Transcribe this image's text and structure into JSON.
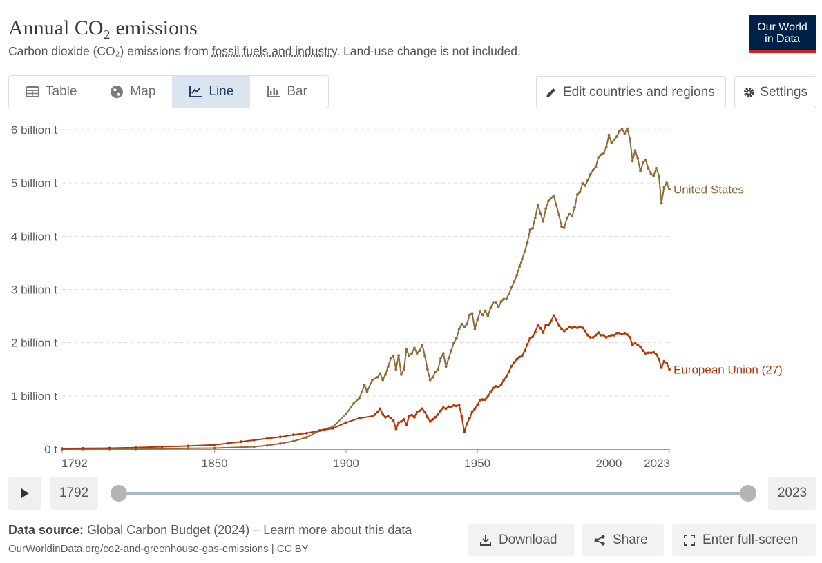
{
  "header": {
    "title": "Annual CO₂ emissions",
    "subtitle_pre": "Carbon dioxide (CO₂) emissions from ",
    "subtitle_link": "fossil fuels and industry",
    "subtitle_post": ". Land-use change is not included.",
    "logo_line1": "Our World",
    "logo_line2": "in Data"
  },
  "tabs": [
    {
      "label": "Table",
      "icon": "table-icon",
      "active": false
    },
    {
      "label": "Map",
      "icon": "globe-icon",
      "active": false
    },
    {
      "label": "Line",
      "icon": "line-chart-icon",
      "active": true
    },
    {
      "label": "Bar",
      "icon": "bar-chart-icon",
      "active": false
    }
  ],
  "toolbar": {
    "edit_label": "Edit countries and regions",
    "settings_label": "Settings"
  },
  "timeline": {
    "start_year": "1792",
    "end_year": "2023",
    "play_icon": "play-icon"
  },
  "footer": {
    "source_label": "Data source:",
    "source_text": " Global Carbon Budget (2024) – ",
    "learn_more": "Learn more about this data",
    "credit": "OurWorldinData.org/co2-and-greenhouse-gas-emissions | CC BY",
    "download_label": "Download",
    "share_label": "Share",
    "fullscreen_label": "Enter full-screen"
  },
  "colors": {
    "us": "#8d6b3a",
    "eu": "#b13507",
    "grid": "#dddddd",
    "axis_text": "#5b5b5b"
  },
  "chart_data": {
    "type": "line",
    "title": "Annual CO₂ emissions",
    "xlim": [
      1792,
      2023
    ],
    "ylim": [
      0,
      6000000000
    ],
    "x_ticks": [
      1792,
      1850,
      1900,
      1950,
      2000,
      2023
    ],
    "y_ticks": [
      {
        "value": 0,
        "label": "0 t"
      },
      {
        "value": 1000000000,
        "label": "1 billion t"
      },
      {
        "value": 2000000000,
        "label": "2 billion t"
      },
      {
        "value": 3000000000,
        "label": "3 billion t"
      },
      {
        "value": 4000000000,
        "label": "4 billion t"
      },
      {
        "value": 5000000000,
        "label": "5 billion t"
      },
      {
        "value": 6000000000,
        "label": "6 billion t"
      }
    ],
    "grid": true,
    "legend": "end-of-line labels",
    "series": [
      {
        "name": "United States",
        "color": "#8d6b3a",
        "points": [
          [
            1792,
            0
          ],
          [
            1800,
            1000000
          ],
          [
            1810,
            2000000
          ],
          [
            1820,
            4000000
          ],
          [
            1830,
            8000000
          ],
          [
            1840,
            16000000
          ],
          [
            1850,
            20000000
          ],
          [
            1860,
            35000000
          ],
          [
            1865,
            45000000
          ],
          [
            1870,
            70000000
          ],
          [
            1875,
            105000000
          ],
          [
            1880,
            150000000
          ],
          [
            1885,
            220000000
          ],
          [
            1890,
            350000000
          ],
          [
            1895,
            420000000
          ],
          [
            1900,
            660000000
          ],
          [
            1903,
            870000000
          ],
          [
            1905,
            950000000
          ],
          [
            1907,
            1200000000
          ],
          [
            1908,
            1080000000
          ],
          [
            1910,
            1300000000
          ],
          [
            1912,
            1350000000
          ],
          [
            1913,
            1420000000
          ],
          [
            1914,
            1300000000
          ],
          [
            1915,
            1400000000
          ],
          [
            1916,
            1550000000
          ],
          [
            1917,
            1700000000
          ],
          [
            1918,
            1750000000
          ],
          [
            1919,
            1500000000
          ],
          [
            1920,
            1760000000
          ],
          [
            1921,
            1400000000
          ],
          [
            1922,
            1500000000
          ],
          [
            1923,
            1880000000
          ],
          [
            1924,
            1750000000
          ],
          [
            1925,
            1800000000
          ],
          [
            1926,
            1900000000
          ],
          [
            1927,
            1800000000
          ],
          [
            1928,
            1850000000
          ],
          [
            1929,
            1960000000
          ],
          [
            1930,
            1750000000
          ],
          [
            1931,
            1500000000
          ],
          [
            1932,
            1300000000
          ],
          [
            1933,
            1350000000
          ],
          [
            1934,
            1450000000
          ],
          [
            1935,
            1500000000
          ],
          [
            1936,
            1700000000
          ],
          [
            1937,
            1800000000
          ],
          [
            1938,
            1550000000
          ],
          [
            1939,
            1700000000
          ],
          [
            1940,
            1850000000
          ],
          [
            1941,
            2000000000
          ],
          [
            1942,
            2080000000
          ],
          [
            1943,
            2250000000
          ],
          [
            1944,
            2350000000
          ],
          [
            1945,
            2300000000
          ],
          [
            1946,
            2350000000
          ],
          [
            1947,
            2520000000
          ],
          [
            1948,
            2550000000
          ],
          [
            1949,
            2250000000
          ],
          [
            1950,
            2430000000
          ],
          [
            1951,
            2580000000
          ],
          [
            1952,
            2520000000
          ],
          [
            1953,
            2600000000
          ],
          [
            1954,
            2500000000
          ],
          [
            1955,
            2650000000
          ],
          [
            1956,
            2760000000
          ],
          [
            1957,
            2760000000
          ],
          [
            1958,
            2670000000
          ],
          [
            1959,
            2770000000
          ],
          [
            1960,
            2820000000
          ],
          [
            1961,
            2820000000
          ],
          [
            1962,
            2920000000
          ],
          [
            1963,
            3040000000
          ],
          [
            1964,
            3150000000
          ],
          [
            1965,
            3270000000
          ],
          [
            1966,
            3430000000
          ],
          [
            1967,
            3570000000
          ],
          [
            1968,
            3720000000
          ],
          [
            1969,
            3880000000
          ],
          [
            1970,
            4120000000
          ],
          [
            1971,
            4150000000
          ],
          [
            1972,
            4350000000
          ],
          [
            1973,
            4580000000
          ],
          [
            1974,
            4430000000
          ],
          [
            1975,
            4280000000
          ],
          [
            1976,
            4520000000
          ],
          [
            1977,
            4660000000
          ],
          [
            1978,
            4720000000
          ],
          [
            1979,
            4760000000
          ],
          [
            1980,
            4580000000
          ],
          [
            1981,
            4400000000
          ],
          [
            1982,
            4180000000
          ],
          [
            1983,
            4160000000
          ],
          [
            1984,
            4330000000
          ],
          [
            1985,
            4420000000
          ],
          [
            1986,
            4380000000
          ],
          [
            1987,
            4540000000
          ],
          [
            1988,
            4780000000
          ],
          [
            1989,
            4830000000
          ],
          [
            1990,
            4990000000
          ],
          [
            1991,
            4950000000
          ],
          [
            1992,
            5050000000
          ],
          [
            1993,
            5160000000
          ],
          [
            1994,
            5240000000
          ],
          [
            1995,
            5300000000
          ],
          [
            1996,
            5480000000
          ],
          [
            1997,
            5530000000
          ],
          [
            1998,
            5560000000
          ],
          [
            1999,
            5670000000
          ],
          [
            2000,
            5900000000
          ],
          [
            2001,
            5760000000
          ],
          [
            2002,
            5810000000
          ],
          [
            2003,
            5870000000
          ],
          [
            2004,
            5970000000
          ],
          [
            2005,
            6010000000
          ],
          [
            2006,
            5930000000
          ],
          [
            2007,
            6020000000
          ],
          [
            2008,
            5830000000
          ],
          [
            2009,
            5410000000
          ],
          [
            2010,
            5610000000
          ],
          [
            2011,
            5460000000
          ],
          [
            2012,
            5220000000
          ],
          [
            2013,
            5380000000
          ],
          [
            2014,
            5430000000
          ],
          [
            2015,
            5270000000
          ],
          [
            2016,
            5170000000
          ],
          [
            2017,
            5130000000
          ],
          [
            2018,
            5280000000
          ],
          [
            2019,
            5140000000
          ],
          [
            2020,
            4620000000
          ],
          [
            2021,
            4920000000
          ],
          [
            2022,
            5000000000
          ],
          [
            2023,
            4880000000
          ]
        ]
      },
      {
        "name": "European Union (27)",
        "color": "#b13507",
        "points": [
          [
            1792,
            10000000
          ],
          [
            1800,
            15000000
          ],
          [
            1810,
            20000000
          ],
          [
            1820,
            30000000
          ],
          [
            1830,
            45000000
          ],
          [
            1840,
            60000000
          ],
          [
            1850,
            80000000
          ],
          [
            1855,
            110000000
          ],
          [
            1860,
            140000000
          ],
          [
            1865,
            170000000
          ],
          [
            1870,
            200000000
          ],
          [
            1875,
            230000000
          ],
          [
            1880,
            270000000
          ],
          [
            1885,
            300000000
          ],
          [
            1890,
            350000000
          ],
          [
            1895,
            390000000
          ],
          [
            1900,
            500000000
          ],
          [
            1905,
            580000000
          ],
          [
            1910,
            620000000
          ],
          [
            1911,
            650000000
          ],
          [
            1912,
            700000000
          ],
          [
            1913,
            760000000
          ],
          [
            1914,
            650000000
          ],
          [
            1915,
            600000000
          ],
          [
            1916,
            620000000
          ],
          [
            1917,
            580000000
          ],
          [
            1918,
            540000000
          ],
          [
            1919,
            380000000
          ],
          [
            1920,
            500000000
          ],
          [
            1921,
            520000000
          ],
          [
            1922,
            560000000
          ],
          [
            1923,
            450000000
          ],
          [
            1924,
            620000000
          ],
          [
            1925,
            640000000
          ],
          [
            1926,
            600000000
          ],
          [
            1927,
            700000000
          ],
          [
            1928,
            720000000
          ],
          [
            1929,
            760000000
          ],
          [
            1930,
            700000000
          ],
          [
            1931,
            600000000
          ],
          [
            1932,
            520000000
          ],
          [
            1933,
            560000000
          ],
          [
            1934,
            600000000
          ],
          [
            1935,
            650000000
          ],
          [
            1936,
            720000000
          ],
          [
            1937,
            780000000
          ],
          [
            1938,
            760000000
          ],
          [
            1939,
            800000000
          ],
          [
            1940,
            790000000
          ],
          [
            1941,
            820000000
          ],
          [
            1942,
            810000000
          ],
          [
            1943,
            830000000
          ],
          [
            1944,
            620000000
          ],
          [
            1945,
            320000000
          ],
          [
            1946,
            480000000
          ],
          [
            1947,
            580000000
          ],
          [
            1948,
            700000000
          ],
          [
            1949,
            760000000
          ],
          [
            1950,
            830000000
          ],
          [
            1951,
            920000000
          ],
          [
            1952,
            930000000
          ],
          [
            1953,
            930000000
          ],
          [
            1954,
            990000000
          ],
          [
            1955,
            1080000000
          ],
          [
            1956,
            1150000000
          ],
          [
            1957,
            1180000000
          ],
          [
            1958,
            1170000000
          ],
          [
            1959,
            1210000000
          ],
          [
            1960,
            1300000000
          ],
          [
            1961,
            1360000000
          ],
          [
            1962,
            1460000000
          ],
          [
            1963,
            1560000000
          ],
          [
            1964,
            1630000000
          ],
          [
            1965,
            1690000000
          ],
          [
            1966,
            1730000000
          ],
          [
            1967,
            1760000000
          ],
          [
            1968,
            1850000000
          ],
          [
            1969,
            1970000000
          ],
          [
            1970,
            2080000000
          ],
          [
            1971,
            2110000000
          ],
          [
            1972,
            2200000000
          ],
          [
            1973,
            2330000000
          ],
          [
            1974,
            2270000000
          ],
          [
            1975,
            2190000000
          ],
          [
            1976,
            2330000000
          ],
          [
            1977,
            2330000000
          ],
          [
            1978,
            2410000000
          ],
          [
            1979,
            2510000000
          ],
          [
            1980,
            2430000000
          ],
          [
            1981,
            2320000000
          ],
          [
            1982,
            2260000000
          ],
          [
            1983,
            2220000000
          ],
          [
            1984,
            2260000000
          ],
          [
            1985,
            2290000000
          ],
          [
            1986,
            2280000000
          ],
          [
            1987,
            2300000000
          ],
          [
            1988,
            2280000000
          ],
          [
            1989,
            2300000000
          ],
          [
            1990,
            2280000000
          ],
          [
            1991,
            2220000000
          ],
          [
            1992,
            2140000000
          ],
          [
            1993,
            2100000000
          ],
          [
            1994,
            2100000000
          ],
          [
            1995,
            2140000000
          ],
          [
            1996,
            2190000000
          ],
          [
            1997,
            2140000000
          ],
          [
            1998,
            2140000000
          ],
          [
            1999,
            2100000000
          ],
          [
            2000,
            2120000000
          ],
          [
            2001,
            2140000000
          ],
          [
            2002,
            2140000000
          ],
          [
            2003,
            2180000000
          ],
          [
            2004,
            2180000000
          ],
          [
            2005,
            2160000000
          ],
          [
            2006,
            2180000000
          ],
          [
            2007,
            2150000000
          ],
          [
            2008,
            2100000000
          ],
          [
            2009,
            1960000000
          ],
          [
            2010,
            1990000000
          ],
          [
            2011,
            1960000000
          ],
          [
            2012,
            1920000000
          ],
          [
            2013,
            1850000000
          ],
          [
            2014,
            1800000000
          ],
          [
            2015,
            1810000000
          ],
          [
            2016,
            1810000000
          ],
          [
            2017,
            1820000000
          ],
          [
            2018,
            1780000000
          ],
          [
            2019,
            1690000000
          ],
          [
            2020,
            1530000000
          ],
          [
            2021,
            1650000000
          ],
          [
            2022,
            1620000000
          ],
          [
            2023,
            1500000000
          ]
        ]
      }
    ]
  }
}
